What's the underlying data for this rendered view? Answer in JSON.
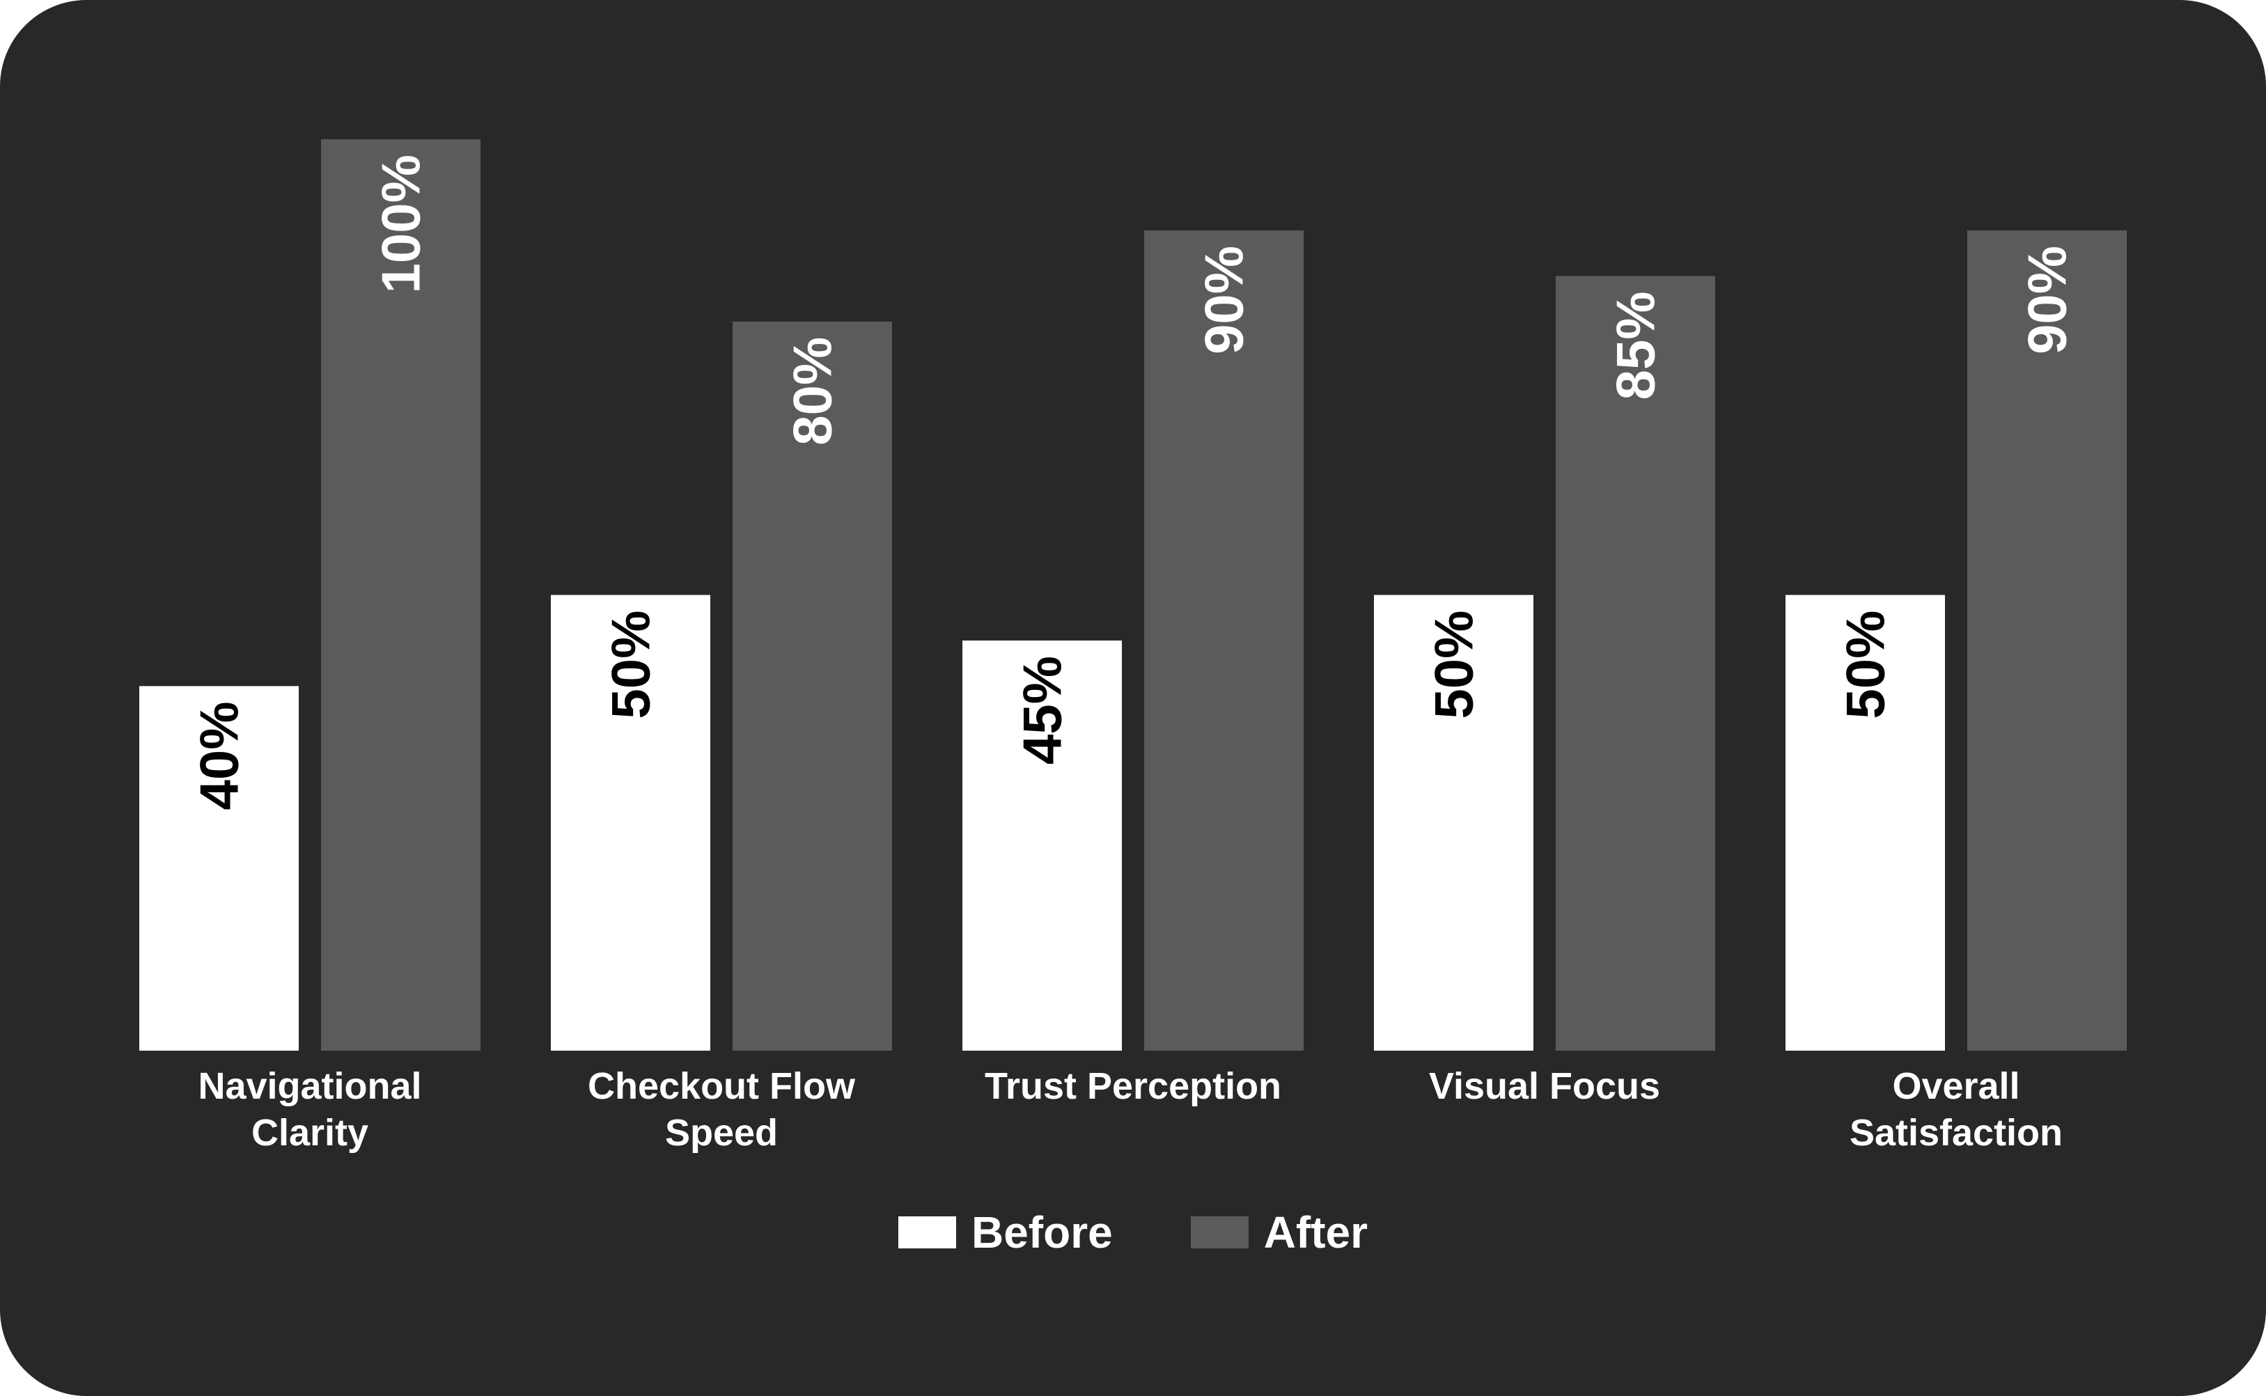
{
  "chart_data": {
    "type": "bar",
    "categories": [
      [
        "Navigational",
        "Clarity"
      ],
      [
        "Checkout Flow",
        "Speed"
      ],
      [
        "Trust Perception"
      ],
      [
        "Visual Focus"
      ],
      [
        "Overall",
        "Satisfaction"
      ]
    ],
    "series": [
      {
        "name": "Before",
        "color": "#ffffff",
        "values": [
          40,
          50,
          45,
          50,
          50
        ],
        "labels": [
          "40%",
          "50%",
          "45%",
          "50%",
          "50%"
        ]
      },
      {
        "name": "After",
        "color": "#5b5b5b",
        "values": [
          100,
          80,
          90,
          85,
          90
        ],
        "labels": [
          "100%",
          "80%",
          "90%",
          "85%",
          "90%"
        ]
      }
    ],
    "ylim": [
      0,
      100
    ],
    "grid": false,
    "legend_position": "bottom-center",
    "background": "#282828"
  }
}
